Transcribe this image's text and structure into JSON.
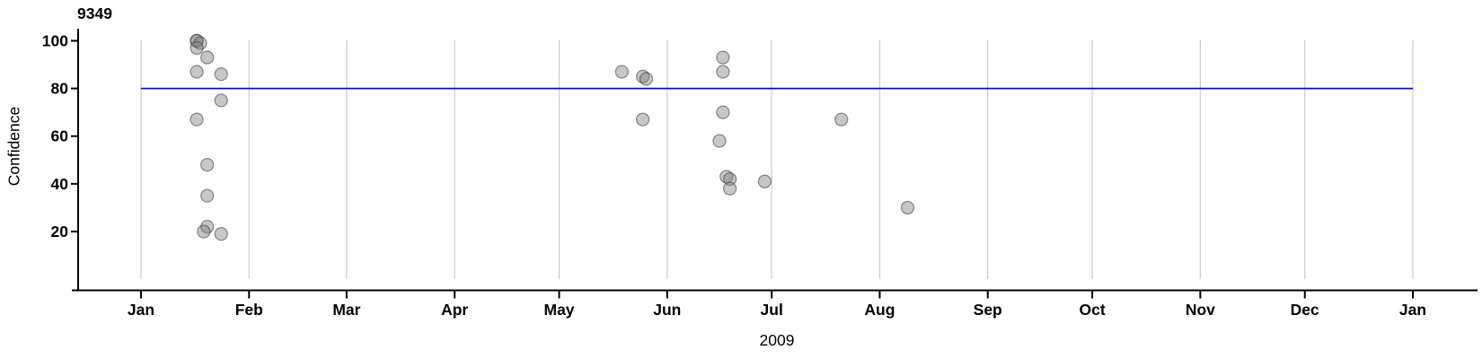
{
  "chart": {
    "title": "9349",
    "ylabel": "Confidence",
    "xlabel": "2009"
  },
  "chart_data": {
    "type": "scatter",
    "title": "9349",
    "xlabel": "2009",
    "ylabel": "Confidence",
    "legend": "none",
    "grid": "vertical-monthly",
    "x_axis": {
      "type": "time",
      "start": "2009-01-01",
      "end": "2010-01-01",
      "tick_labels": [
        "Jan",
        "Feb",
        "Mar",
        "Apr",
        "May",
        "Jun",
        "Jul",
        "Aug",
        "Sep",
        "Oct",
        "Nov",
        "Dec",
        "Jan"
      ]
    },
    "y_axis": {
      "ticks": [
        20,
        40,
        60,
        80,
        100
      ],
      "min": 0,
      "max": 105
    },
    "reference_line": {
      "value": 80,
      "color": "#0000CC"
    },
    "point_style": {
      "radius": 7,
      "fill": "#828282",
      "fill_opacity": 0.45,
      "stroke": "#3c3c3c",
      "stroke_opacity": 0.55
    },
    "axis_color": "#000000",
    "grid_color": "#cccccc",
    "points": [
      {
        "date": "2009-01-17",
        "value": 100
      },
      {
        "date": "2009-01-17",
        "value": 100
      },
      {
        "date": "2009-01-18",
        "value": 99
      },
      {
        "date": "2009-01-17",
        "value": 97
      },
      {
        "date": "2009-01-20",
        "value": 93
      },
      {
        "date": "2009-01-17",
        "value": 87
      },
      {
        "date": "2009-01-24",
        "value": 86
      },
      {
        "date": "2009-01-24",
        "value": 75
      },
      {
        "date": "2009-01-17",
        "value": 67
      },
      {
        "date": "2009-01-20",
        "value": 48
      },
      {
        "date": "2009-01-20",
        "value": 35
      },
      {
        "date": "2009-01-20",
        "value": 22
      },
      {
        "date": "2009-01-19",
        "value": 20
      },
      {
        "date": "2009-01-24",
        "value": 19
      },
      {
        "date": "2009-05-19",
        "value": 87
      },
      {
        "date": "2009-05-25",
        "value": 85
      },
      {
        "date": "2009-05-26",
        "value": 84
      },
      {
        "date": "2009-05-25",
        "value": 67
      },
      {
        "date": "2009-06-17",
        "value": 93
      },
      {
        "date": "2009-06-17",
        "value": 87
      },
      {
        "date": "2009-06-17",
        "value": 70
      },
      {
        "date": "2009-06-16",
        "value": 58
      },
      {
        "date": "2009-06-18",
        "value": 43
      },
      {
        "date": "2009-06-19",
        "value": 42
      },
      {
        "date": "2009-06-19",
        "value": 38
      },
      {
        "date": "2009-06-29",
        "value": 41
      },
      {
        "date": "2009-07-21",
        "value": 67
      },
      {
        "date": "2009-08-09",
        "value": 30
      }
    ]
  }
}
